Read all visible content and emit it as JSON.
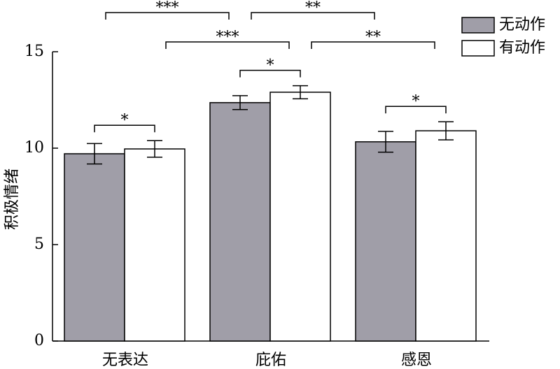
{
  "chart_data": {
    "type": "bar",
    "ylabel": "积极情绪",
    "categories": [
      "无表达",
      "庇佑",
      "感恩"
    ],
    "series": [
      {
        "name": "无动作",
        "color": "#a09ea8",
        "values": [
          9.71,
          12.36,
          10.33
        ],
        "errors": [
          0.53,
          0.36,
          0.54
        ]
      },
      {
        "name": "有动作",
        "color": "#ffffff",
        "values": [
          9.96,
          12.9,
          10.9
        ],
        "errors": [
          0.43,
          0.34,
          0.47
        ]
      }
    ],
    "ylim": [
      0,
      15
    ],
    "yticks": [
      0,
      5,
      10,
      15
    ],
    "legend": "top-right",
    "significance": [
      {
        "label": "***",
        "from": [
          0,
          0
        ],
        "to": [
          1,
          0
        ]
      },
      {
        "label": "**",
        "from": [
          1,
          0
        ],
        "to": [
          2,
          0
        ]
      },
      {
        "label": "***",
        "from": [
          0,
          1
        ],
        "to": [
          1,
          1
        ]
      },
      {
        "label": "**",
        "from": [
          1,
          1
        ],
        "to": [
          2,
          1
        ]
      },
      {
        "label": "*",
        "from": [
          0,
          0
        ],
        "to": [
          0,
          1
        ]
      },
      {
        "label": "*",
        "from": [
          1,
          0
        ],
        "to": [
          1,
          1
        ]
      },
      {
        "label": "*",
        "from": [
          2,
          0
        ],
        "to": [
          2,
          1
        ]
      }
    ]
  }
}
